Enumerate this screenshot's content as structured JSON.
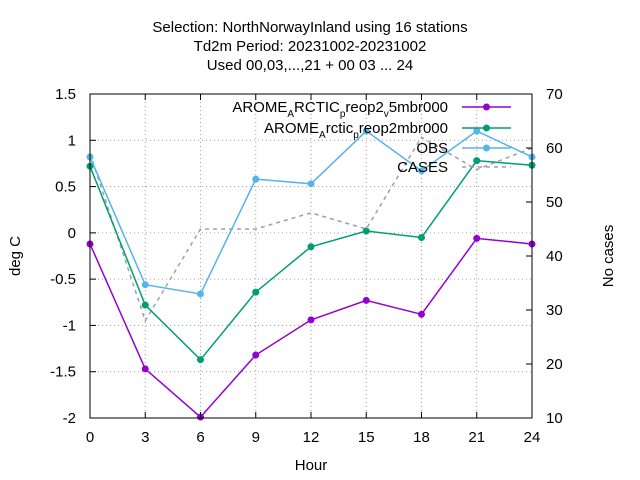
{
  "chart_data": {
    "type": "line",
    "title_lines": [
      "Selection: NorthNorwayInland using    16 stations",
      "Td2m   Period: 20231002-20231002",
      "Used  00,03,...,21  + 00 03 ... 24"
    ],
    "xlabel": "Hour",
    "ylabel": "deg C",
    "y2label": "No cases",
    "x": [
      0,
      3,
      6,
      9,
      12,
      15,
      18,
      21,
      24
    ],
    "x_ticks": [
      "0",
      "3",
      "6",
      "9",
      "12",
      "15",
      "18",
      "21",
      "24"
    ],
    "xlim": [
      0,
      24
    ],
    "ylim": [
      -2,
      1.5
    ],
    "y_ticks": [
      "-2",
      "-1.5",
      "-1",
      "-0.5",
      "0",
      "0.5",
      "1",
      "1.5"
    ],
    "y2lim": [
      10,
      70
    ],
    "y2_ticks": [
      "10",
      "20",
      "30",
      "40",
      "50",
      "60",
      "70"
    ],
    "grid": true,
    "legend_position": "top-right",
    "series": [
      {
        "legend": {
          "parts": [
            [
              "AROME",
              ""
            ],
            [
              "A",
              "sub"
            ],
            [
              "RCTIC",
              ""
            ],
            [
              "p",
              "sub"
            ],
            [
              "reop2",
              ""
            ],
            [
              "v",
              "sub"
            ],
            [
              "5mbr000",
              ""
            ]
          ]
        },
        "axis": "left",
        "color": "#9400d3",
        "marker": "circle",
        "values": [
          -0.12,
          -1.47,
          -1.99,
          -1.32,
          -0.94,
          -0.73,
          -0.88,
          -0.06,
          -0.12
        ]
      },
      {
        "legend": {
          "parts": [
            [
              "AROME",
              ""
            ],
            [
              "A",
              "sub"
            ],
            [
              "rctic",
              ""
            ],
            [
              "p",
              "sub"
            ],
            [
              "reop2mbr000",
              ""
            ]
          ]
        },
        "axis": "left",
        "color": "#009e73",
        "marker": "circle",
        "values": [
          0.72,
          -0.78,
          -1.37,
          -0.64,
          -0.15,
          0.02,
          -0.05,
          0.78,
          0.73
        ]
      },
      {
        "legend": {
          "parts": [
            [
              "OBS",
              ""
            ]
          ]
        },
        "axis": "left",
        "color": "#56b4e9",
        "marker": "circle",
        "values": [
          0.82,
          -0.56,
          -0.66,
          0.58,
          0.53,
          1.1,
          0.67,
          1.1,
          0.82
        ]
      },
      {
        "legend": {
          "parts": [
            [
              "CASES",
              ""
            ]
          ]
        },
        "axis": "right",
        "color": "#a0a0a0",
        "dashed": true,
        "marker": "none",
        "values": [
          59,
          28,
          45,
          45,
          48,
          45,
          62,
          56,
          60
        ]
      }
    ]
  }
}
